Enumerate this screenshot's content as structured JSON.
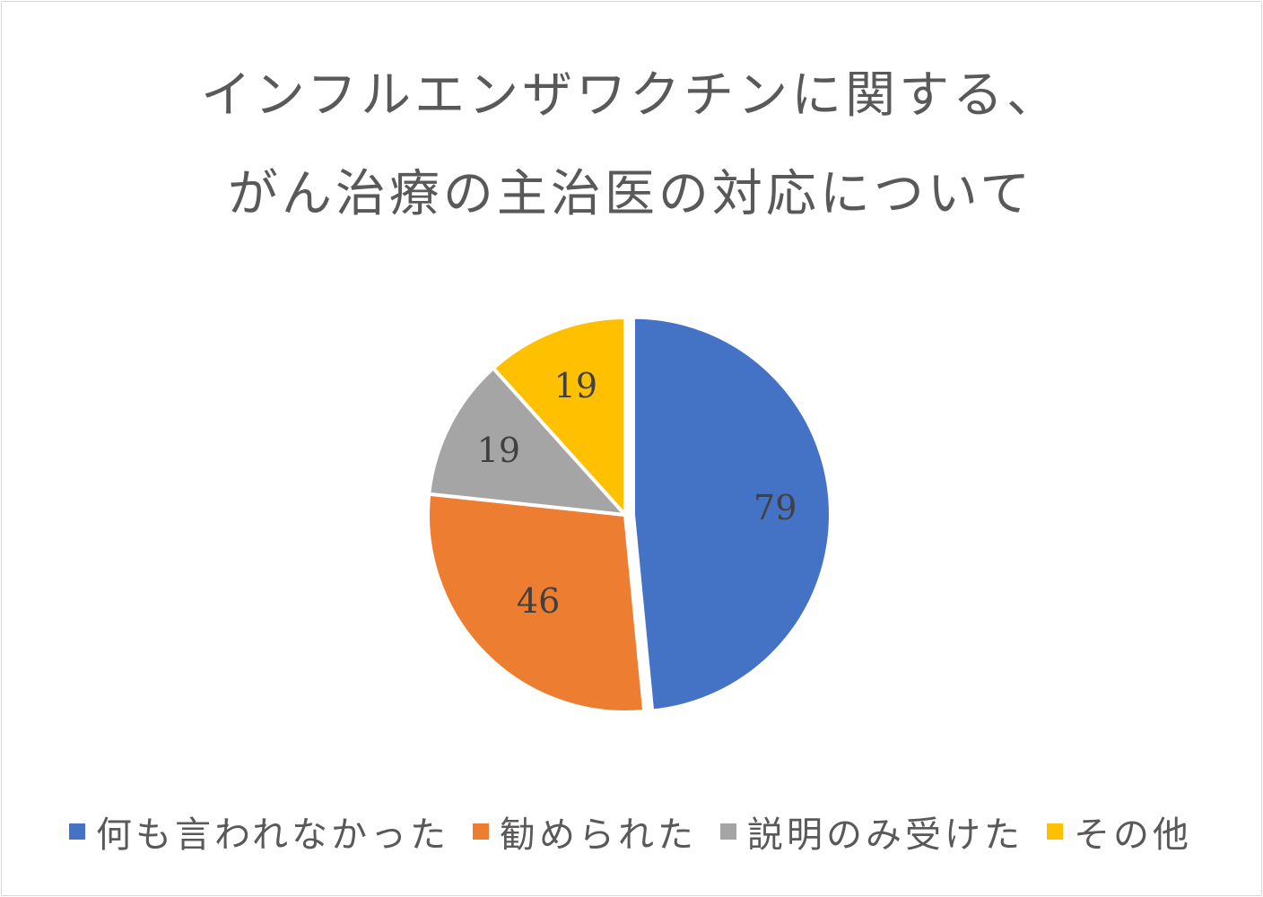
{
  "chart_data": {
    "type": "pie",
    "title_lines": [
      "インフルエンザワクチンに関する、",
      "がん治療の主治医の対応について"
    ],
    "categories": [
      "何も言われなかった",
      "勧められた",
      "説明のみ受けた",
      "その他"
    ],
    "values": [
      79,
      46,
      19,
      19
    ],
    "colors": [
      "#4472c4",
      "#ed7d31",
      "#a5a5a5",
      "#ffc000"
    ],
    "data_labels": [
      "79",
      "46",
      "19",
      "19"
    ],
    "legend_position": "bottom",
    "explode_first_slice": true
  }
}
